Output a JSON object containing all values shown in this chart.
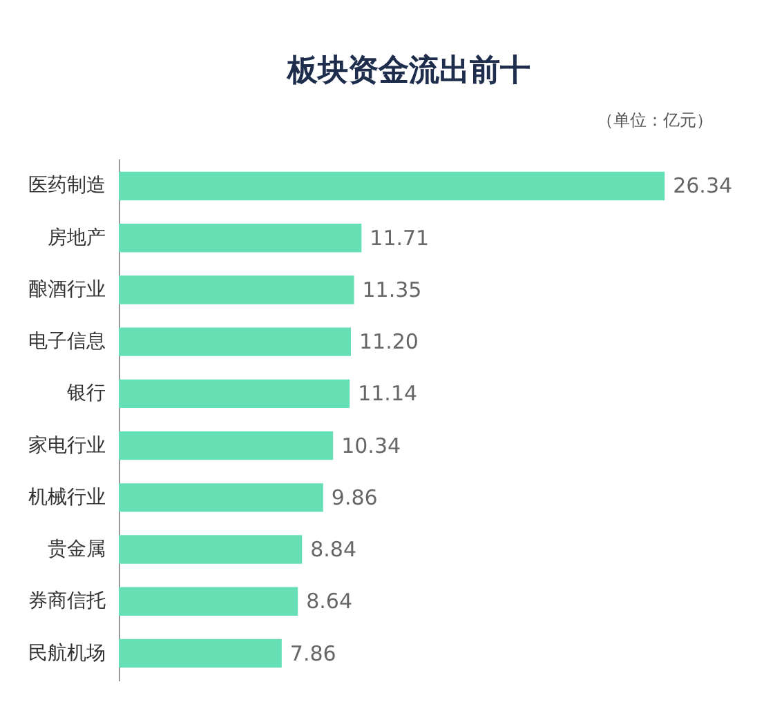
{
  "chart_data": {
    "type": "bar",
    "orientation": "horizontal",
    "title": "板块资金流出前十",
    "annotations": [
      "（单位：亿元）"
    ],
    "categories": [
      "医药制造",
      "房地产",
      "酿酒行业",
      "电子信息",
      "银行",
      "家电行业",
      "机械行业",
      "贵金属",
      "券商信托",
      "民航机场"
    ],
    "values": [
      26.34,
      11.71,
      11.35,
      11.2,
      11.14,
      10.34,
      9.86,
      8.84,
      8.64,
      7.86
    ],
    "color": "#66dfb5",
    "data_labels": true,
    "value_labels": [
      "26.34",
      "11.71",
      "11.35",
      "11.20",
      "11.14",
      "10.34",
      "9.86",
      "8.84",
      "8.64",
      "7.86"
    ]
  }
}
